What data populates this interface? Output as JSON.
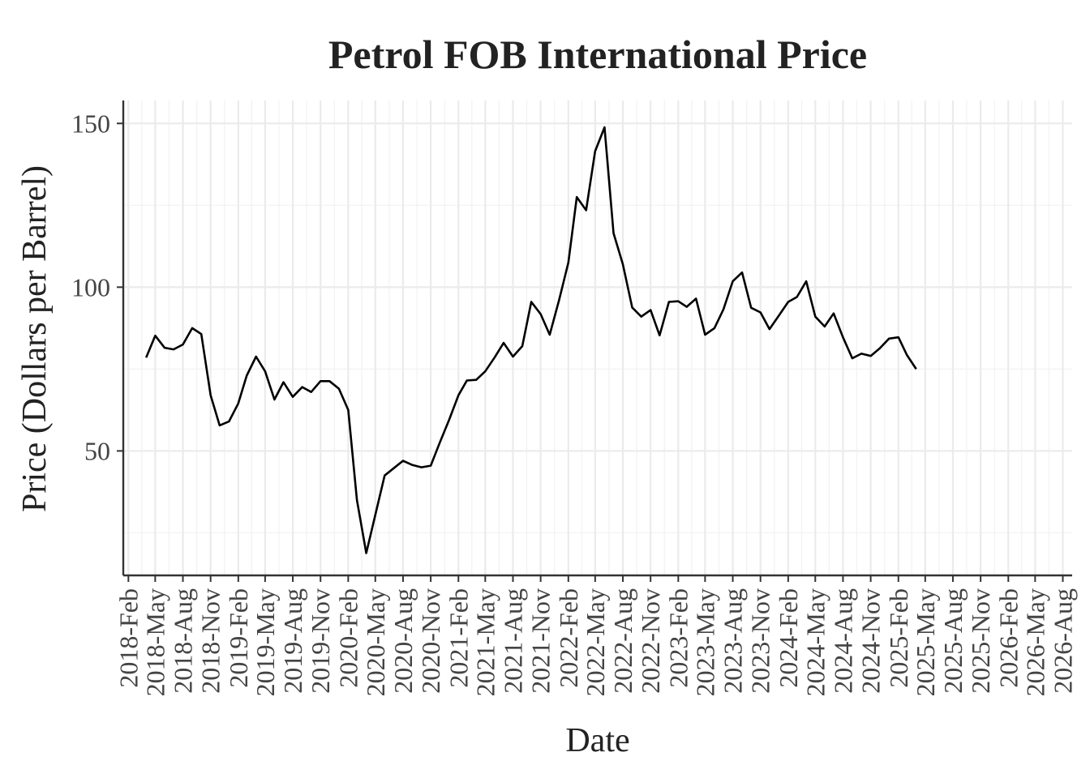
{
  "chart_data": {
    "type": "line",
    "title": "Petrol FOB International Price",
    "xlabel": "Date",
    "ylabel": "Price (Dollars per Barrel)",
    "xlim": [
      "2018-01-15",
      "2026-09-01"
    ],
    "ylim": [
      12,
      157
    ],
    "grid": true,
    "legend": "none",
    "y_ticks": [
      50,
      100,
      150
    ],
    "x_ticks": [
      "2018-Feb",
      "2018-May",
      "2018-Aug",
      "2018-Nov",
      "2019-Feb",
      "2019-May",
      "2019-Aug",
      "2019-Nov",
      "2020-Feb",
      "2020-May",
      "2020-Aug",
      "2020-Nov",
      "2021-Feb",
      "2021-May",
      "2021-Aug",
      "2021-Nov",
      "2022-Feb",
      "2022-May",
      "2022-Aug",
      "2022-Nov",
      "2023-Feb",
      "2023-May",
      "2023-Aug",
      "2023-Nov",
      "2024-Feb",
      "2024-May",
      "2024-Aug",
      "2024-Nov",
      "2025-Feb",
      "2025-May",
      "2025-Aug",
      "2025-Nov",
      "2026-Feb",
      "2026-May",
      "2026-Aug"
    ],
    "x_tick_dates": [
      "2018-02-01",
      "2018-05-01",
      "2018-08-01",
      "2018-11-01",
      "2019-02-01",
      "2019-05-01",
      "2019-08-01",
      "2019-11-01",
      "2020-02-01",
      "2020-05-01",
      "2020-08-01",
      "2020-11-01",
      "2021-02-01",
      "2021-05-01",
      "2021-08-01",
      "2021-11-01",
      "2022-02-01",
      "2022-05-01",
      "2022-08-01",
      "2022-11-01",
      "2023-02-01",
      "2023-05-01",
      "2023-08-01",
      "2023-11-01",
      "2024-02-01",
      "2024-05-01",
      "2024-08-01",
      "2024-11-01",
      "2025-02-01",
      "2025-05-01",
      "2025-08-01",
      "2025-11-01",
      "2026-02-01",
      "2026-05-01",
      "2026-08-01"
    ],
    "series": [
      {
        "x": [
          "2018-04-01",
          "2018-05-01",
          "2018-06-01",
          "2018-07-01",
          "2018-08-01",
          "2018-09-01",
          "2018-10-01",
          "2018-11-01",
          "2018-12-01",
          "2019-01-01",
          "2019-02-01",
          "2019-03-01",
          "2019-04-01",
          "2019-05-01",
          "2019-06-01",
          "2019-07-01",
          "2019-08-01",
          "2019-09-01",
          "2019-10-01",
          "2019-11-01",
          "2019-12-01",
          "2020-01-01",
          "2020-02-01",
          "2020-03-01",
          "2020-04-01",
          "2020-05-01",
          "2020-06-01",
          "2020-07-01",
          "2020-08-01",
          "2020-09-01",
          "2020-10-01",
          "2020-11-01",
          "2020-12-01",
          "2021-01-01",
          "2021-02-01",
          "2021-03-01",
          "2021-04-01",
          "2021-05-01",
          "2021-06-01",
          "2021-07-01",
          "2021-08-01",
          "2021-09-01",
          "2021-10-01",
          "2021-11-01",
          "2021-12-01",
          "2022-01-01",
          "2022-02-01",
          "2022-03-01",
          "2022-04-01",
          "2022-05-01",
          "2022-06-01",
          "2022-07-01",
          "2022-08-01",
          "2022-09-01",
          "2022-10-01",
          "2022-11-01",
          "2022-12-01",
          "2023-01-01",
          "2023-02-01",
          "2023-03-01",
          "2023-04-01",
          "2023-05-01",
          "2023-06-01",
          "2023-07-01",
          "2023-08-01",
          "2023-09-01",
          "2023-10-01",
          "2023-11-01",
          "2023-12-01",
          "2024-01-01",
          "2024-02-01",
          "2024-03-01",
          "2024-04-01",
          "2024-05-01",
          "2024-06-01",
          "2024-07-01",
          "2024-08-01",
          "2024-09-01",
          "2024-10-01",
          "2024-11-01",
          "2024-12-01",
          "2025-01-01",
          "2025-02-01",
          "2025-03-01",
          "2025-04-01"
        ],
        "values": [
          78.5,
          85.2,
          81.5,
          81.0,
          82.5,
          87.5,
          85.7,
          67.0,
          57.8,
          59.0,
          64.5,
          73.0,
          78.8,
          74.3,
          65.7,
          71.0,
          66.5,
          69.5,
          68.0,
          71.3,
          71.3,
          69.0,
          62.5,
          35.0,
          18.8,
          30.5,
          42.5,
          44.7,
          47.0,
          45.7,
          45.0,
          45.5,
          52.5,
          59.5,
          67.0,
          71.5,
          71.7,
          74.3,
          78.5,
          83.0,
          78.8,
          82.0,
          95.5,
          91.8,
          85.5,
          96.0,
          107.5,
          127.5,
          123.5,
          141.5,
          148.8,
          116.5,
          107.0,
          93.8,
          91.0,
          93.0,
          85.3,
          95.5,
          95.7,
          94.0,
          96.5,
          85.5,
          87.5,
          93.2,
          101.8,
          104.5,
          93.7,
          92.3,
          87.2,
          91.3,
          95.5,
          97.0,
          101.8,
          91.0,
          88.0,
          92.0,
          84.7,
          78.3,
          79.7,
          79.0,
          81.3,
          84.3,
          84.7,
          79.3,
          75.0
        ]
      }
    ]
  }
}
